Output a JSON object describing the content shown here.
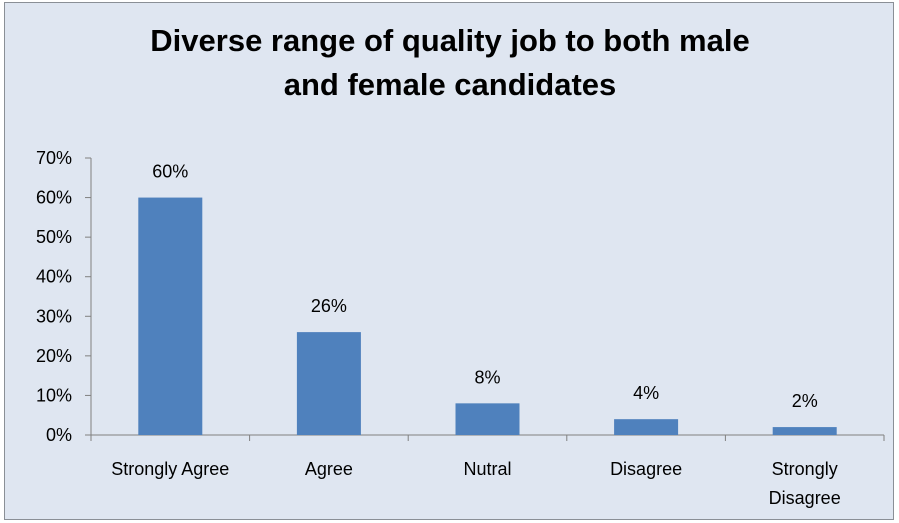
{
  "chart_data": {
    "type": "bar",
    "title_lines": [
      "Diverse range of quality job to both male",
      "and female candidates"
    ],
    "categories": [
      [
        "Strongly Agree"
      ],
      [
        "Agree"
      ],
      [
        "Nutral"
      ],
      [
        "Disagree"
      ],
      [
        "Strongly",
        "Disagree"
      ]
    ],
    "values": [
      60,
      26,
      8,
      4,
      2
    ],
    "data_labels": [
      "60%",
      "26%",
      "8%",
      "4%",
      "2%"
    ],
    "y_ticks": [
      "0%",
      "10%",
      "20%",
      "30%",
      "40%",
      "50%",
      "60%",
      "70%"
    ],
    "ylim": [
      0,
      70
    ],
    "ytick_step": 10,
    "grid": false,
    "legend": "none",
    "bar_color": "#4f81bd",
    "background_color": "#dfe6f1",
    "axis_color": "#808080"
  }
}
